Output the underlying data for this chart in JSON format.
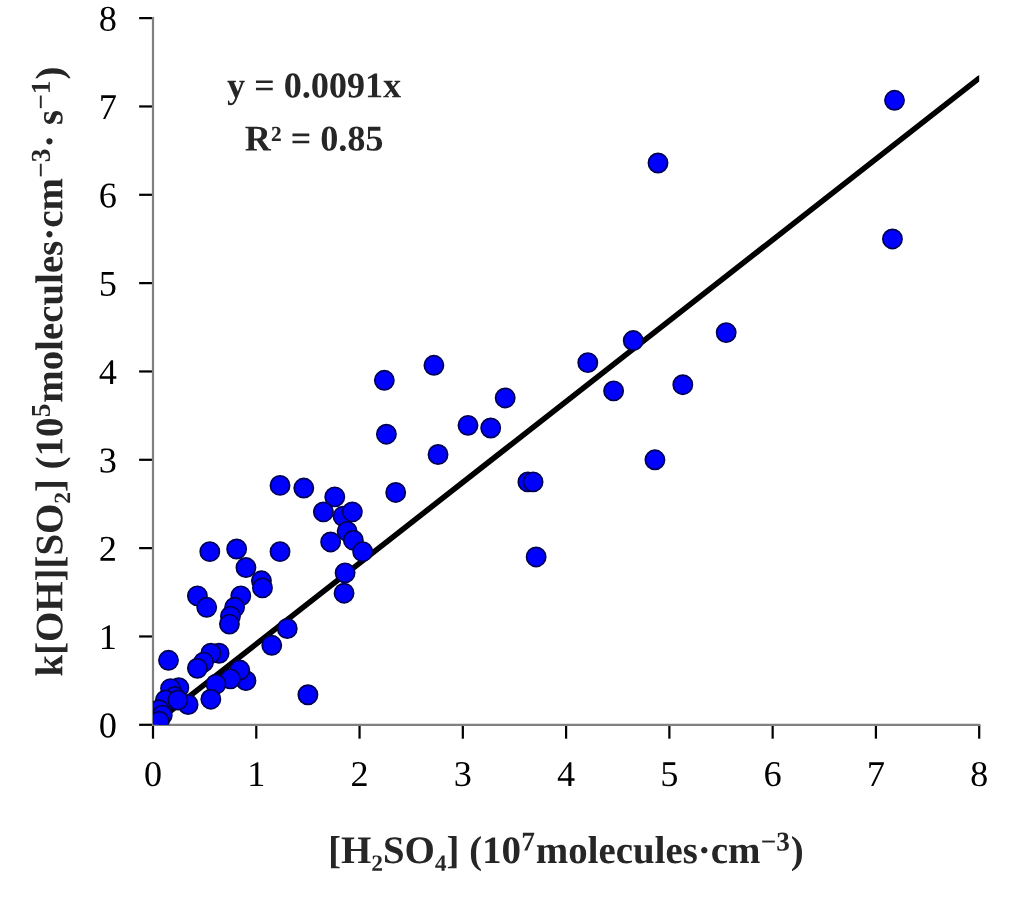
{
  "chart_data": {
    "type": "scatter",
    "xlabel": "[H₂SO₄] (10$^{7}$molecules·cm$^{−3}$)",
    "ylabel": "k[OH][SO₂] (10$^{5}$molecules·cm$^{−3}$· s$^{−1}$)",
    "annotations": [
      "y = 0.0091x",
      "R² = 0.85"
    ],
    "xlim": [
      0,
      8
    ],
    "ylim": [
      0,
      8
    ],
    "xticks": [
      0,
      1,
      2,
      3,
      4,
      5,
      6,
      7,
      8
    ],
    "yticks": [
      0,
      1,
      2,
      3,
      4,
      5,
      6,
      7,
      8
    ],
    "grid": false,
    "legend": false,
    "marker": "circle",
    "series": [
      {
        "color": "#0000ff",
        "x": [
          0.15,
          0.43,
          0.52,
          0.55,
          0.81,
          0.9,
          0.85,
          0.79,
          0.75,
          0.74,
          1.05,
          1.06,
          1.23,
          1.23,
          1.46,
          1.76,
          1.65,
          1.72,
          1.84,
          1.93,
          1.88,
          1.94,
          2.03,
          1.86,
          1.85,
          2.24,
          2.26,
          2.35,
          1.5,
          1.3,
          1.15,
          0.9,
          0.84,
          0.75,
          0.61,
          0.56,
          0.64,
          0.56,
          0.49,
          0.43,
          0.34,
          0.25,
          0.17,
          0.21,
          0.12,
          0.06,
          0.09,
          0.24,
          0.06,
          7.18,
          7.16,
          4.89,
          5.55,
          5.13,
          4.86,
          4.65,
          4.21,
          4.46,
          3.71,
          3.63,
          3.68,
          3.41,
          3.27,
          3.05,
          2.76,
          2.72
        ],
        "values": [
          0.73,
          1.46,
          1.33,
          1.96,
          1.99,
          1.78,
          1.46,
          1.33,
          1.23,
          1.14,
          1.63,
          1.55,
          1.96,
          2.71,
          2.68,
          2.58,
          2.41,
          2.07,
          2.36,
          2.41,
          2.19,
          2.09,
          1.96,
          1.72,
          1.49,
          3.9,
          3.29,
          2.63,
          0.34,
          1.09,
          0.9,
          0.5,
          0.62,
          0.52,
          0.46,
          0.29,
          0.81,
          0.81,
          0.71,
          0.64,
          0.23,
          0.42,
          0.41,
          0.32,
          0.28,
          0.17,
          0.11,
          0.28,
          0.04,
          7.07,
          5.5,
          6.36,
          4.44,
          3.85,
          3.0,
          4.35,
          4.1,
          3.78,
          1.9,
          2.75,
          2.75,
          3.7,
          3.36,
          3.39,
          3.06,
          4.07
        ]
      },
      {
        "type": "line",
        "color": "#000000",
        "marker": "none",
        "line_style": "solid",
        "x": [
          0,
          8
        ],
        "values": [
          0,
          7.32
        ]
      }
    ]
  }
}
